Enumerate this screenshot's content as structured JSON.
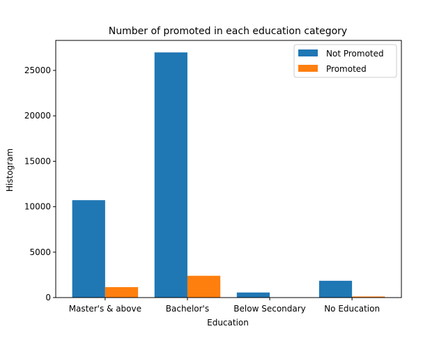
{
  "chart_data": {
    "type": "bar",
    "title": "Number of promoted in each education category",
    "xlabel": "Education",
    "ylabel": "Histogram",
    "categories": [
      "Master's & above",
      "Bachelor's",
      "Below Secondary",
      "No Education"
    ],
    "series": [
      {
        "name": "Not Promoted",
        "color": "#1f77b4",
        "values": [
          10720,
          26980,
          560,
          1850
        ]
      },
      {
        "name": "Promoted",
        "color": "#ff7f0e",
        "values": [
          1150,
          2400,
          30,
          120
        ]
      }
    ],
    "yticks": [
      0,
      5000,
      10000,
      15000,
      20000,
      25000
    ],
    "ylim": [
      0,
      28300
    ],
    "grid": false,
    "legend_position": "top-right"
  }
}
